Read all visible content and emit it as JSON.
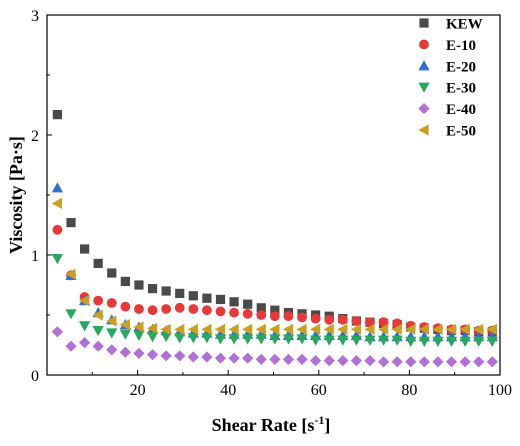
{
  "chart_data": {
    "type": "scatter",
    "xlabel_main": "Shear Rate [s",
    "xlabel_sup": "-1",
    "xlabel_end": "]",
    "ylabel": "Viscosity [Pa·s]",
    "xlim": [
      0,
      100
    ],
    "ylim": [
      0,
      3
    ],
    "xticks": [
      "20",
      "40",
      "60",
      "80",
      "100"
    ],
    "yticks": [
      "0",
      "1",
      "2",
      "3"
    ],
    "grid": false,
    "legend_position": "top-right",
    "series": [
      {
        "name": "KEW",
        "marker": "square",
        "color": "#4a4a4a",
        "x": [
          2.3,
          5.3,
          8.3,
          11.3,
          14.3,
          17.3,
          20.3,
          23.3,
          26.3,
          29.3,
          32.3,
          35.3,
          38.3,
          41.3,
          44.3,
          47.3,
          50.3,
          53.3,
          56.3,
          59.3,
          62.3,
          65.3,
          68.3,
          71.3,
          74.3,
          77.3,
          80.3,
          83.3,
          86.3,
          89.3,
          92.3,
          95.3,
          98.3
        ],
        "y": [
          2.17,
          1.27,
          1.05,
          0.93,
          0.85,
          0.78,
          0.75,
          0.72,
          0.7,
          0.68,
          0.66,
          0.64,
          0.63,
          0.61,
          0.59,
          0.56,
          0.54,
          0.52,
          0.51,
          0.5,
          0.49,
          0.47,
          0.45,
          0.44,
          0.43,
          0.42,
          0.4,
          0.39,
          0.38,
          0.37,
          0.37,
          0.36,
          0.36
        ]
      },
      {
        "name": "E-10",
        "marker": "circle",
        "color": "#e8393a",
        "x": [
          2.3,
          5.3,
          8.3,
          11.3,
          14.3,
          17.3,
          20.3,
          23.3,
          26.3,
          29.3,
          32.3,
          35.3,
          38.3,
          41.3,
          44.3,
          47.3,
          50.3,
          53.3,
          56.3,
          59.3,
          62.3,
          65.3,
          68.3,
          71.3,
          74.3,
          77.3,
          80.3,
          83.3,
          86.3,
          89.3,
          92.3,
          95.3,
          98.3
        ],
        "y": [
          1.21,
          0.83,
          0.65,
          0.62,
          0.6,
          0.57,
          0.55,
          0.54,
          0.55,
          0.56,
          0.55,
          0.54,
          0.53,
          0.52,
          0.51,
          0.5,
          0.49,
          0.49,
          0.48,
          0.47,
          0.46,
          0.46,
          0.45,
          0.44,
          0.44,
          0.43,
          0.41,
          0.4,
          0.39,
          0.38,
          0.38,
          0.37,
          0.37
        ]
      },
      {
        "name": "E-20",
        "marker": "triangle-up",
        "color": "#2e6fd0",
        "x": [
          2.3,
          5.3,
          8.3,
          11.3,
          14.3,
          17.3,
          20.3,
          23.3,
          26.3,
          29.3,
          32.3,
          35.3,
          38.3,
          41.3,
          44.3,
          47.3,
          50.3,
          53.3,
          56.3,
          59.3,
          62.3,
          65.3,
          68.3,
          71.3,
          74.3,
          77.3,
          80.3,
          83.3,
          86.3,
          89.3,
          92.3,
          95.3,
          98.3
        ],
        "y": [
          1.56,
          0.83,
          0.62,
          0.52,
          0.46,
          0.42,
          0.4,
          0.38,
          0.37,
          0.36,
          0.35,
          0.35,
          0.34,
          0.34,
          0.34,
          0.34,
          0.33,
          0.33,
          0.33,
          0.33,
          0.33,
          0.33,
          0.33,
          0.32,
          0.32,
          0.32,
          0.32,
          0.32,
          0.32,
          0.32,
          0.32,
          0.32,
          0.32
        ]
      },
      {
        "name": "E-30",
        "marker": "triangle-down",
        "color": "#27a85e",
        "x": [
          2.3,
          5.3,
          8.3,
          11.3,
          14.3,
          17.3,
          20.3,
          23.3,
          26.3,
          29.3,
          32.3,
          35.3,
          38.3,
          41.3,
          44.3,
          47.3,
          50.3,
          53.3,
          56.3,
          59.3,
          62.3,
          65.3,
          68.3,
          71.3,
          74.3,
          77.3,
          80.3,
          83.3,
          86.3,
          89.3,
          92.3,
          95.3,
          98.3
        ],
        "y": [
          0.97,
          0.51,
          0.41,
          0.37,
          0.35,
          0.34,
          0.33,
          0.32,
          0.32,
          0.31,
          0.31,
          0.31,
          0.3,
          0.3,
          0.3,
          0.3,
          0.3,
          0.3,
          0.3,
          0.29,
          0.29,
          0.29,
          0.29,
          0.29,
          0.29,
          0.29,
          0.28,
          0.28,
          0.28,
          0.28,
          0.28,
          0.28,
          0.28
        ]
      },
      {
        "name": "E-40",
        "marker": "diamond",
        "color": "#b070d8",
        "x": [
          2.3,
          5.3,
          8.3,
          11.3,
          14.3,
          17.3,
          20.3,
          23.3,
          26.3,
          29.3,
          32.3,
          35.3,
          38.3,
          41.3,
          44.3,
          47.3,
          50.3,
          53.3,
          56.3,
          59.3,
          62.3,
          65.3,
          68.3,
          71.3,
          74.3,
          77.3,
          80.3,
          83.3,
          86.3,
          89.3,
          92.3,
          95.3,
          98.3
        ],
        "y": [
          0.36,
          0.24,
          0.27,
          0.24,
          0.21,
          0.19,
          0.18,
          0.17,
          0.16,
          0.16,
          0.15,
          0.15,
          0.14,
          0.14,
          0.14,
          0.13,
          0.13,
          0.13,
          0.13,
          0.12,
          0.12,
          0.12,
          0.12,
          0.12,
          0.11,
          0.11,
          0.11,
          0.11,
          0.11,
          0.11,
          0.11,
          0.11,
          0.11
        ]
      },
      {
        "name": "E-50",
        "marker": "triangle-left",
        "color": "#c9a021",
        "x": [
          2.3,
          5.3,
          8.3,
          11.3,
          14.3,
          17.3,
          20.3,
          23.3,
          26.3,
          29.3,
          32.3,
          35.3,
          38.3,
          41.3,
          44.3,
          47.3,
          50.3,
          53.3,
          56.3,
          59.3,
          62.3,
          65.3,
          68.3,
          71.3,
          74.3,
          77.3,
          80.3,
          83.3,
          86.3,
          89.3,
          92.3,
          95.3,
          98.3
        ],
        "y": [
          1.43,
          0.84,
          0.62,
          0.5,
          0.45,
          0.42,
          0.4,
          0.39,
          0.38,
          0.38,
          0.38,
          0.38,
          0.38,
          0.38,
          0.38,
          0.38,
          0.38,
          0.38,
          0.38,
          0.38,
          0.38,
          0.38,
          0.38,
          0.38,
          0.38,
          0.38,
          0.38,
          0.38,
          0.38,
          0.38,
          0.38,
          0.38,
          0.38
        ]
      }
    ]
  }
}
